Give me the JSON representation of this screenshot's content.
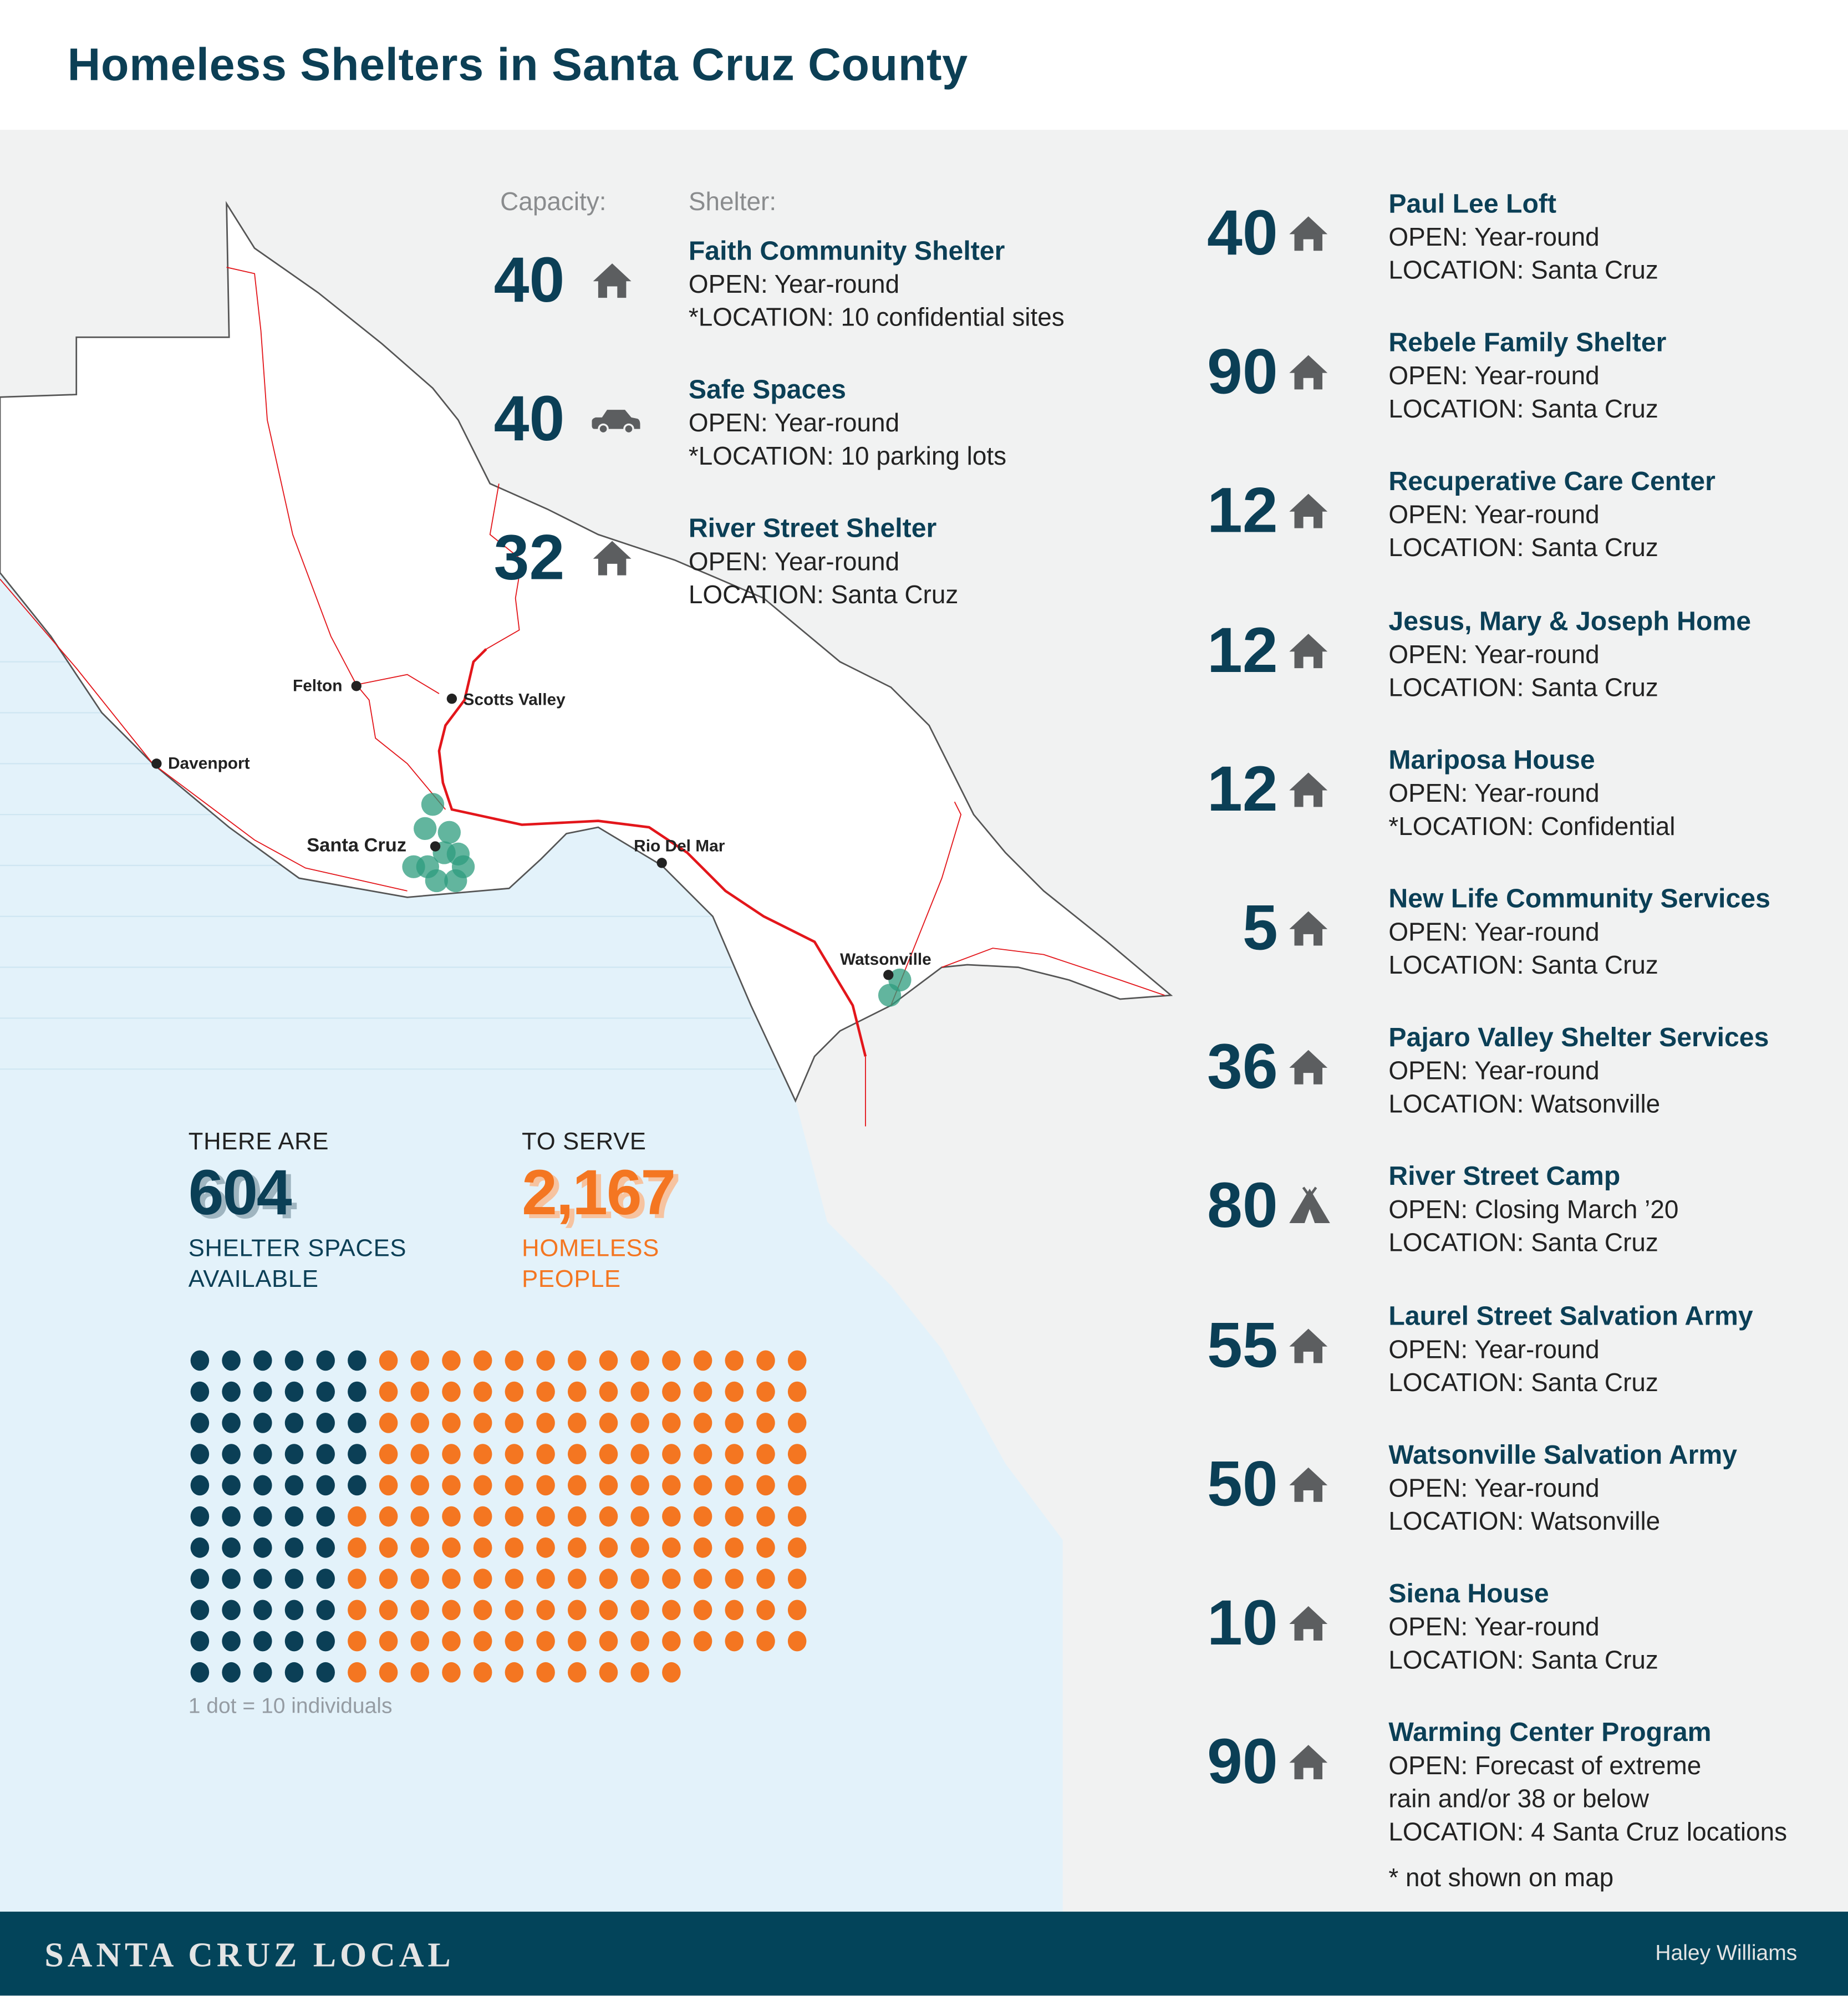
{
  "title": "Homeless Shelters in Santa Cruz County",
  "columns": {
    "capacity": "Capacity:",
    "shelter": "Shelter:"
  },
  "colors": {
    "dark": "#0b3f56",
    "orange": "#f47621",
    "ocean": "#e3f2fa",
    "marker": "#2e9c7e",
    "road": "#e3161b",
    "icon": "#5c5e60"
  },
  "map_cities": [
    {
      "name": "Felton"
    },
    {
      "name": "Scotts Valley"
    },
    {
      "name": "Davenport"
    },
    {
      "name": "Santa Cruz"
    },
    {
      "name": "Rio Del Mar"
    },
    {
      "name": "Watsonville"
    }
  ],
  "left_shelters": [
    {
      "capacity": "40",
      "icon": "house-icon",
      "name": "Faith Community Shelter",
      "open": "OPEN: Year-round",
      "location": "*LOCATION: 10 confidential sites"
    },
    {
      "capacity": "40",
      "icon": "car-icon",
      "name": "Safe Spaces",
      "open": "OPEN: Year-round",
      "location": "*LOCATION: 10 parking lots"
    },
    {
      "capacity": "32",
      "icon": "house-icon",
      "name": "River Street Shelter",
      "open": "OPEN: Year-round",
      "location": "LOCATION: Santa Cruz"
    }
  ],
  "right_shelters": [
    {
      "capacity": "40",
      "icon": "house-icon",
      "name": "Paul Lee Loft",
      "open": "OPEN: Year-round",
      "location": "LOCATION: Santa Cruz"
    },
    {
      "capacity": "90",
      "icon": "house-icon",
      "name": "Rebele Family Shelter",
      "open": "OPEN: Year-round",
      "location": "LOCATION: Santa Cruz"
    },
    {
      "capacity": "12",
      "icon": "house-icon",
      "name": "Recuperative Care  Center",
      "open": "OPEN: Year-round",
      "location": "LOCATION: Santa Cruz"
    },
    {
      "capacity": "12",
      "icon": "house-icon",
      "name": "Jesus, Mary & Joseph Home",
      "open": "OPEN: Year-round",
      "location": "LOCATION: Santa Cruz"
    },
    {
      "capacity": "12",
      "icon": "house-icon",
      "name": "Mariposa House",
      "open": "OPEN: Year-round",
      "location": "*LOCATION: Confidential"
    },
    {
      "capacity": "5",
      "icon": "house-icon",
      "name": "New Life Community Services",
      "open": "OPEN: Year-round",
      "location": "LOCATION: Santa Cruz"
    },
    {
      "capacity": "36",
      "icon": "house-icon",
      "name": "Pajaro Valley Shelter Services",
      "open": "OPEN: Year-round",
      "location": "LOCATION: Watsonville"
    },
    {
      "capacity": "80",
      "icon": "tent-icon",
      "name": "River Street Camp",
      "open": "OPEN: Closing March ’20",
      "location": "LOCATION: Santa Cruz"
    },
    {
      "capacity": "55",
      "icon": "house-icon",
      "name": "Laurel Street Salvation Army",
      "open": "OPEN: Year-round",
      "location": "LOCATION: Santa Cruz"
    },
    {
      "capacity": "50",
      "icon": "house-icon",
      "name": "Watsonville Salvation Army",
      "open": "OPEN: Year-round",
      "location": "LOCATION: Watsonville"
    },
    {
      "capacity": "10",
      "icon": "house-icon",
      "name": "Siena House",
      "open": "OPEN: Year-round",
      "location": "LOCATION: Santa Cruz"
    },
    {
      "capacity": "90",
      "icon": "house-icon",
      "name": "Warming Center Program",
      "open": "OPEN: Forecast of extreme",
      "open2": "rain and/or 38 or below",
      "location": "LOCATION: 4 Santa Cruz locations"
    }
  ],
  "footnote": "* not shown on map",
  "stats": {
    "spaces": {
      "pre": "THERE ARE",
      "value": "604",
      "post1": "SHELTER SPACES",
      "post2": "AVAILABLE"
    },
    "people": {
      "pre": "TO SERVE",
      "value": "2,167",
      "post1": "HOMELESS",
      "post2": "PEOPLE"
    }
  },
  "dots": {
    "legend": "1 dot = 10 individuals",
    "dark_count": 60,
    "orange_count": 156
  },
  "footer": {
    "logo": "SANTA CRUZ LOCAL",
    "credit": "Haley Williams"
  }
}
